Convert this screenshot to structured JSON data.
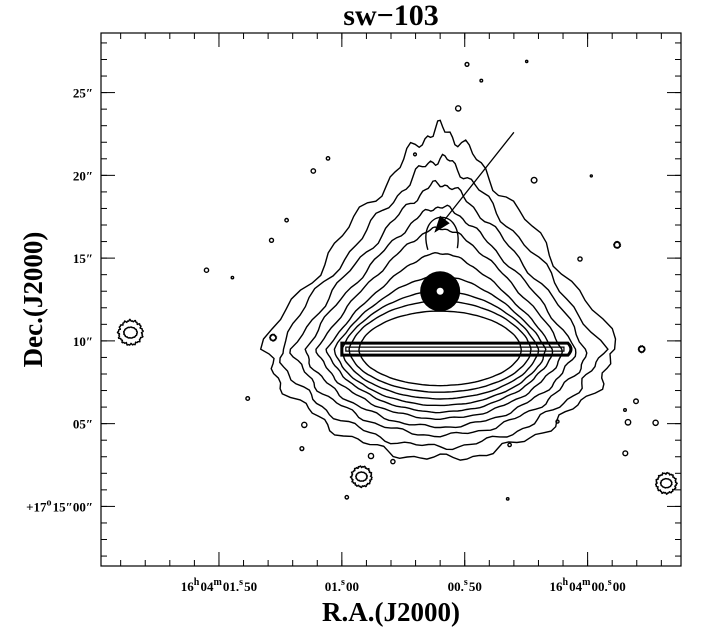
{
  "chart_data": {
    "type": "contour",
    "title": "sw−103",
    "xlabel": "R.A.(J2000)",
    "ylabel": "Dec.(J2000)",
    "x_axis": {
      "unit": "seconds of RA offset from 16h04m00s",
      "range": [
        1.98,
        -0.38
      ],
      "reversed": true,
      "major_ticks": [
        {
          "value": 1.5,
          "label": "16^h04^m01.^s50"
        },
        {
          "value": 1.0,
          "label": "01.^s00"
        },
        {
          "value": 0.5,
          "label": "00.^s50"
        },
        {
          "value": 0.0,
          "label": "16^h04^m00.^s00"
        }
      ],
      "minor_tick_step": 0.1
    },
    "y_axis": {
      "unit": "arcsec offset from +17d15m00s",
      "range": [
        -3.6,
        28.6
      ],
      "major_ticks": [
        {
          "value": 0,
          "label": "+17^o15″00″"
        },
        {
          "value": 5,
          "label": "05″"
        },
        {
          "value": 10,
          "label": "10″"
        },
        {
          "value": 15,
          "label": "15″"
        },
        {
          "value": 20,
          "label": "20″"
        },
        {
          "value": 25,
          "label": "25″"
        }
      ],
      "minor_tick_step": 1
    },
    "grid": false,
    "legend": "none",
    "main_source": {
      "x": 0.6,
      "y": 9.5
    },
    "saturation_bar": {
      "x_start": 1.0,
      "x_end": 0.08,
      "y": 9.5
    },
    "marked_source": {
      "x": 0.6,
      "y": 13.0
    },
    "arrow": {
      "from": {
        "x": 0.3,
        "y": 22.6
      },
      "to": {
        "x": 0.62,
        "y": 16.6
      }
    },
    "compact_sources": [
      {
        "x": 1.86,
        "y": 10.5
      },
      {
        "x": 1.28,
        "y": 10.2
      },
      {
        "x": 0.92,
        "y": 1.8
      },
      {
        "x": -0.32,
        "y": 1.4
      },
      {
        "x": -0.12,
        "y": 15.8
      },
      {
        "x": -0.22,
        "y": 9.5
      }
    ]
  }
}
